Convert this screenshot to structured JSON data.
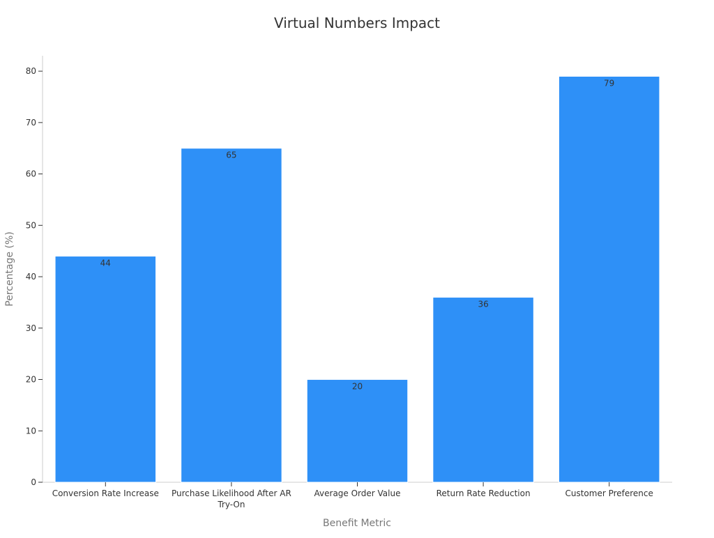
{
  "chart_data": {
    "type": "bar",
    "title": "Virtual Numbers Impact",
    "xlabel": "Benefit Metric",
    "ylabel": "Percentage (%)",
    "categories": [
      [
        "Conversion Rate Increase"
      ],
      [
        "Purchase Likelihood After AR",
        "Try-On"
      ],
      [
        "Average Order Value"
      ],
      [
        "Return Rate Reduction"
      ],
      [
        "Customer Preference"
      ]
    ],
    "values": [
      44,
      65,
      20,
      36,
      79
    ],
    "data_labels": [
      "44",
      "65",
      "20",
      "36",
      "79"
    ],
    "ylim": [
      0,
      83
    ],
    "yticks": [
      0,
      10,
      20,
      30,
      40,
      50,
      60,
      70,
      80
    ],
    "bar_color": "#2E90F7",
    "grid": false,
    "legend": "none"
  }
}
